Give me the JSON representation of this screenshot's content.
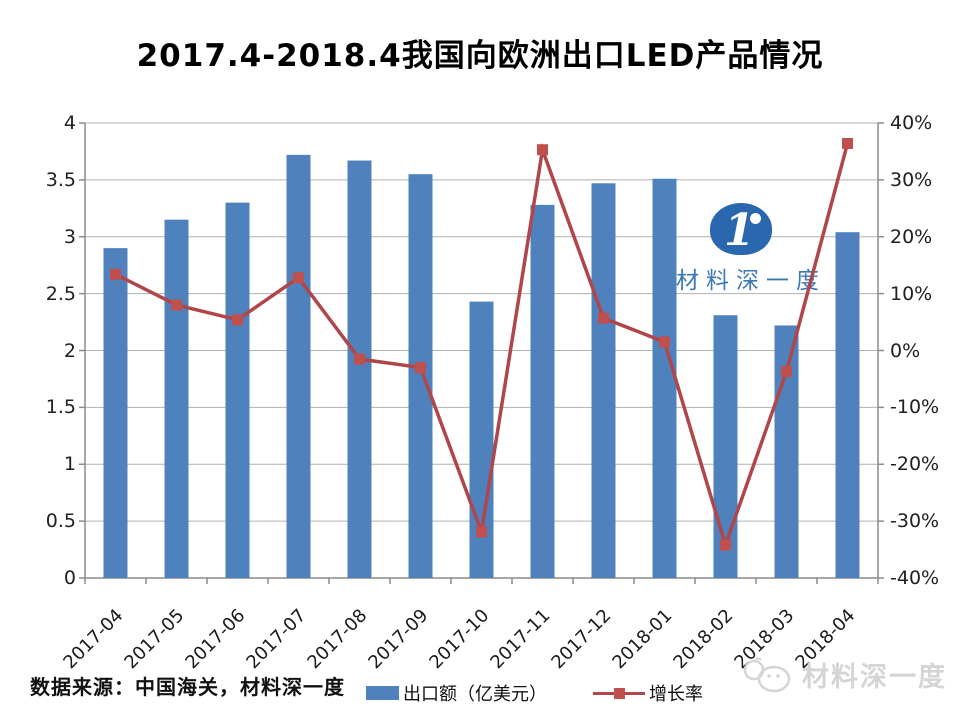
{
  "title": "2017.4-2018.4我国向欧洲出口LED产品情况",
  "source_note": "数据来源：中国海关，材料深一度",
  "watermark": {
    "logo_numeral": "1",
    "logo_text": "材料深一度",
    "footer_text": "材料深一度"
  },
  "legend": {
    "bar_label": "出口额（亿美元）",
    "line_label": "增长率"
  },
  "colors": {
    "bar": "#4f81bd",
    "line": "#b04649",
    "marker": "#c0504d",
    "grid": "#b0b0b0",
    "axis": "#8c8c8c",
    "logo_blue": "#2b67ae",
    "watermark_gray": "#d5d5d5"
  },
  "chart_data": {
    "type": "bar",
    "subtype": "bar+line combo, dual axis",
    "title": "2017.4-2018.4我国向欧洲出口LED产品情况",
    "categories": [
      "2017-04",
      "2017-05",
      "2017-06",
      "2017-07",
      "2017-08",
      "2017-09",
      "2017-10",
      "2017-11",
      "2017-12",
      "2018-01",
      "2018-02",
      "2018-03",
      "2018-04"
    ],
    "series": [
      {
        "name": "出口额（亿美元）",
        "type": "bar",
        "axis": "left",
        "values": [
          2.9,
          3.15,
          3.3,
          3.72,
          3.67,
          3.55,
          2.43,
          3.28,
          3.47,
          3.51,
          2.31,
          2.22,
          3.04
        ]
      },
      {
        "name": "增长率",
        "type": "line",
        "axis": "right",
        "unit": "%",
        "values": [
          13.4,
          8.0,
          5.4,
          12.8,
          -1.5,
          -3.0,
          -31.9,
          35.3,
          5.7,
          1.5,
          -34.2,
          -3.7,
          36.4
        ]
      }
    ],
    "left_axis": {
      "min": 0,
      "max": 4,
      "step": 0.5,
      "ticks": [
        "4",
        "3.5",
        "3",
        "2.5",
        "2",
        "1.5",
        "1",
        "0.5",
        "0"
      ]
    },
    "right_axis": {
      "min": -40,
      "max": 40,
      "step": 10,
      "ticks": [
        "40%",
        "30%",
        "20%",
        "10%",
        "0%",
        "-10%",
        "-20%",
        "-30%",
        "-40%"
      ]
    },
    "grid": true,
    "legend_position": "bottom",
    "xlabel": "",
    "ylabel_left": "出口额（亿美元）",
    "ylabel_right": "增长率"
  }
}
